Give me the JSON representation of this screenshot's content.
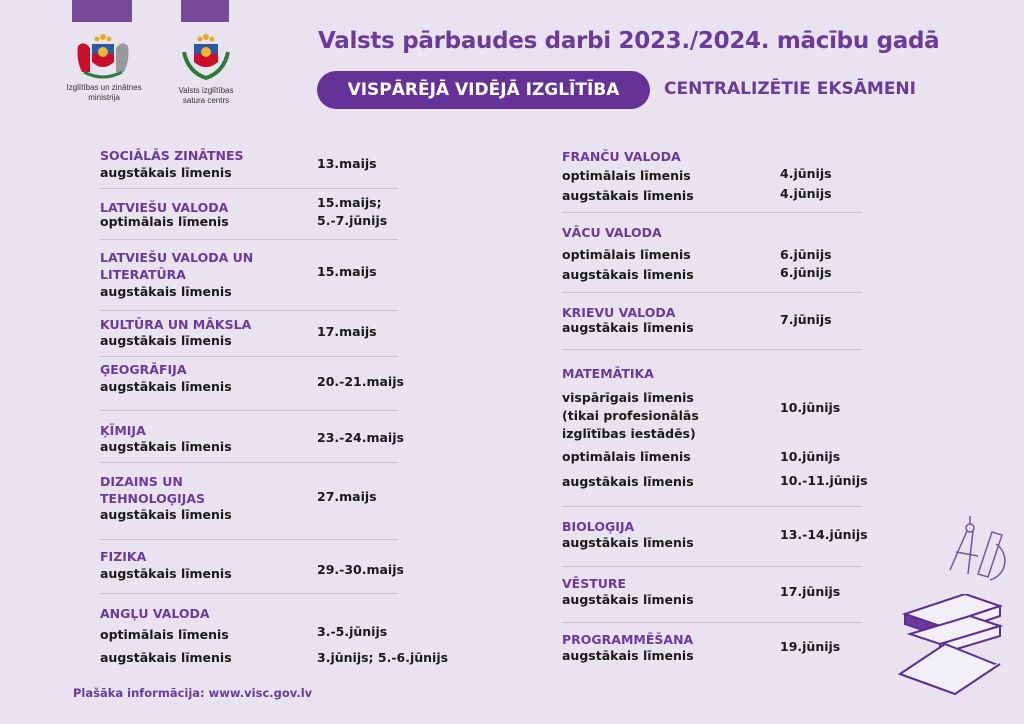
{
  "header": {
    "logo1_caption": "Izglītības un zinātnes\nministrija",
    "logo2_caption": "Valsts izglītības\nsatura centrs",
    "title": "Valsts pārbaudes darbi 2023./2024. mācību gadā",
    "pill_label": "VISPĀRĒJĀ VIDĒJĀ IZGLĪTĪBA",
    "subtitle": "CENTRALIZĒTIE EKSĀMENI"
  },
  "left": [
    {
      "subject": "SOCIĀLĀS ZINĀTNES",
      "rows": [
        {
          "level": "augstākais līmenis",
          "date": "13.maijs"
        }
      ]
    },
    {
      "subject": "LATVIEŠU VALODA",
      "rows": [
        {
          "level": "optimālais līmenis",
          "date": "15.maijs;\n5.-7.jūnijs"
        }
      ]
    },
    {
      "subject": "LATVIEŠU VALODA UN\nLITERATŪRA",
      "rows": [
        {
          "level": "augstākais līmenis",
          "date": "15.maijs"
        }
      ]
    },
    {
      "subject": "KULTŪRA UN MĀKSLA",
      "rows": [
        {
          "level": "augstākais līmenis",
          "date": "17.maijs"
        }
      ]
    },
    {
      "subject": "ĢEOGRĀFIJA",
      "rows": [
        {
          "level": "augstākais līmenis",
          "date": "20.-21.maijs"
        }
      ]
    },
    {
      "subject": "ĶĪMIJA",
      "rows": [
        {
          "level": "augstākais līmenis",
          "date": "23.-24.maijs"
        }
      ]
    },
    {
      "subject": "DIZAINS UN\nTEHNOLOĢIJAS",
      "rows": [
        {
          "level": "augstākais līmenis",
          "date": "27.maijs"
        }
      ]
    },
    {
      "subject": "FIZIKA",
      "rows": [
        {
          "level": "augstākais līmenis",
          "date": "29.-30.maijs"
        }
      ]
    },
    {
      "subject": "ANGĻU VALODA",
      "rows": [
        {
          "level": "optimālais līmenis",
          "date": "3.-5.jūnijs"
        },
        {
          "level": "augstākais līmenis",
          "date": "3.jūnijs; 5.-6.jūnijs"
        }
      ]
    }
  ],
  "right": [
    {
      "subject": "FRANČU VALODA",
      "rows": [
        {
          "level": "optimālais līmenis",
          "date": "4.jūnijs"
        },
        {
          "level": "augstākais līmenis",
          "date": "4.jūnijs"
        }
      ]
    },
    {
      "subject": "VĀCU VALODA",
      "rows": [
        {
          "level": "optimālais līmenis",
          "date": "6.jūnijs"
        },
        {
          "level": "augstākais līmenis",
          "date": "6.jūnijs"
        }
      ]
    },
    {
      "subject": "KRIEVU VALODA",
      "rows": [
        {
          "level": "augstākais līmenis",
          "date": "7.jūnijs"
        }
      ]
    },
    {
      "subject": "MATEMĀTIKA",
      "rows": [
        {
          "level": "vispārīgais līmenis\n(tikai profesionālās\nizglītības iestādēs)",
          "date": "10.jūnijs"
        },
        {
          "level": "optimālais līmenis",
          "date": "10.jūnijs"
        },
        {
          "level": "augstākais līmenis",
          "date": "10.-11.jūnijs"
        }
      ]
    },
    {
      "subject": "BIOLOĢIJA",
      "rows": [
        {
          "level": "augstākais līmenis",
          "date": "13.-14.jūnijs"
        }
      ]
    },
    {
      "subject": "VĒSTURE",
      "rows": [
        {
          "level": "augstākais līmenis",
          "date": "17.jūnijs"
        }
      ]
    },
    {
      "subject": "PROGRAMMĒŠANA",
      "rows": [
        {
          "level": "augstākais līmenis",
          "date": "19.jūnijs"
        }
      ]
    }
  ],
  "footer": {
    "text": "Plašāka informācija: www.visc.gov.lv"
  },
  "colors": {
    "accent": "#6b3a9b",
    "background": "#e8e3ee",
    "pill": "#65329a"
  }
}
